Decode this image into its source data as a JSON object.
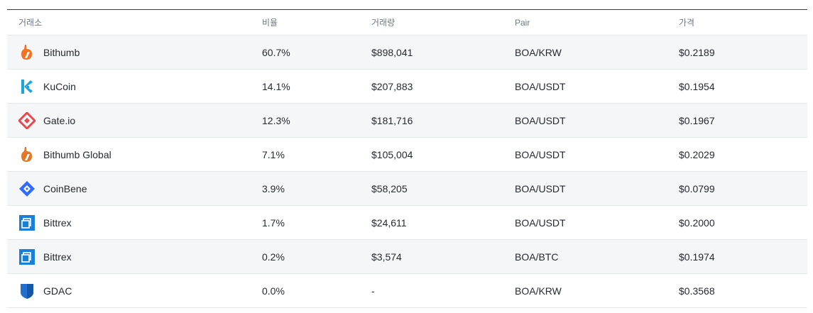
{
  "headers": {
    "exchange": "거래소",
    "ratio": "비율",
    "volume": "거래량",
    "pair": "Pair",
    "price": "가격"
  },
  "rows": [
    {
      "exchange": "Bithumb",
      "icon": "bithumb-icon",
      "ratio": "60.7%",
      "volume": "$898,041",
      "pair": "BOA/KRW",
      "price": "$0.2189"
    },
    {
      "exchange": "KuCoin",
      "icon": "kucoin-icon",
      "ratio": "14.1%",
      "volume": "$207,883",
      "pair": "BOA/USDT",
      "price": "$0.1954"
    },
    {
      "exchange": "Gate.io",
      "icon": "gateio-icon",
      "ratio": "12.3%",
      "volume": "$181,716",
      "pair": "BOA/USDT",
      "price": "$0.1967"
    },
    {
      "exchange": "Bithumb Global",
      "icon": "bithumb-global-icon",
      "ratio": "7.1%",
      "volume": "$105,004",
      "pair": "BOA/USDT",
      "price": "$0.2029"
    },
    {
      "exchange": "CoinBene",
      "icon": "coinbene-icon",
      "ratio": "3.9%",
      "volume": "$58,205",
      "pair": "BOA/USDT",
      "price": "$0.0799"
    },
    {
      "exchange": "Bittrex",
      "icon": "bittrex-icon",
      "ratio": "1.7%",
      "volume": "$24,611",
      "pair": "BOA/USDT",
      "price": "$0.2000"
    },
    {
      "exchange": "Bittrex",
      "icon": "bittrex-icon",
      "ratio": "0.2%",
      "volume": "$3,574",
      "pair": "BOA/BTC",
      "price": "$0.1974"
    },
    {
      "exchange": "GDAC",
      "icon": "gdac-icon",
      "ratio": "0.0%",
      "volume": "-",
      "pair": "BOA/KRW",
      "price": "$0.3568"
    }
  ],
  "colors": {
    "header_border": "#3a3f45",
    "row_border": "#e3e6ea",
    "alt_row_bg": "#f5f6f8",
    "header_text": "#6f7782",
    "bithumb": "#f37321",
    "kucoin": "#23af91",
    "gateio": "#e5484d",
    "coinbene": "#2f6bff",
    "bittrex": "#1a7fd6",
    "gdac": "#1f6fd0"
  }
}
